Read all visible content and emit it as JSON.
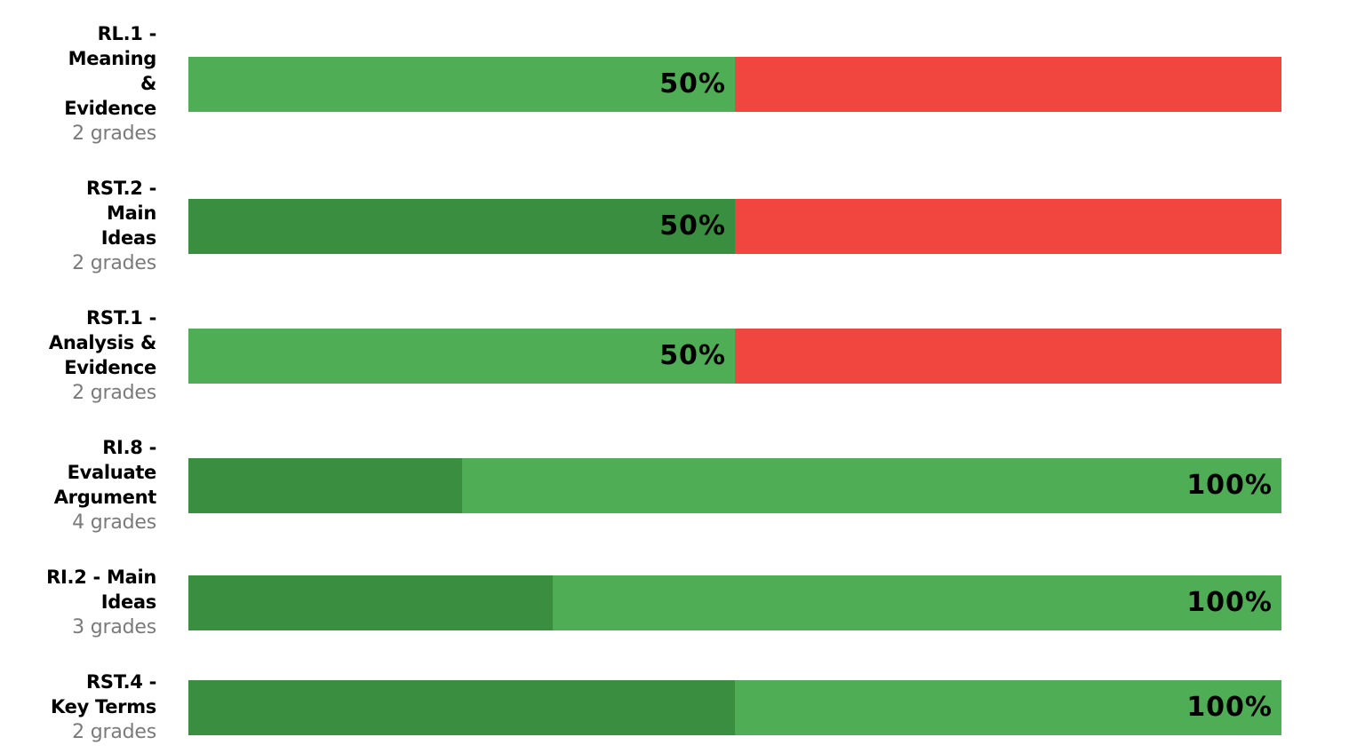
{
  "colors": {
    "mastery_dark": "#3a8e3f",
    "mastery_light": "#4fad55",
    "not_mastered": "#f1453f"
  },
  "chart_data": {
    "type": "bar",
    "orientation": "horizontal",
    "stacked": true,
    "grid": false,
    "xlim": [
      0,
      100
    ],
    "rows": [
      {
        "name": "RL.1 - Meaning & Evidence",
        "grades_label": "2 grades",
        "value_label": "50%",
        "segments": [
          {
            "color": "#4fad55",
            "value": 50
          },
          {
            "color": "#f1453f",
            "value": 50
          }
        ]
      },
      {
        "name": "RST.2 - Main Ideas",
        "grades_label": "2 grades",
        "value_label": "50%",
        "segments": [
          {
            "color": "#3a8e3f",
            "value": 50
          },
          {
            "color": "#f1453f",
            "value": 50
          }
        ]
      },
      {
        "name": "RST.1 - Analysis & Evidence",
        "grades_label": "2 grades",
        "value_label": "50%",
        "segments": [
          {
            "color": "#4fad55",
            "value": 50
          },
          {
            "color": "#f1453f",
            "value": 50
          }
        ]
      },
      {
        "name": "RI.8 - Evaluate Argument",
        "grades_label": "4 grades",
        "value_label": "100%",
        "segments": [
          {
            "color": "#3a8e3f",
            "value": 25
          },
          {
            "color": "#4fad55",
            "value": 75
          }
        ]
      },
      {
        "name": "RI.2 - Main Ideas",
        "grades_label": "3 grades",
        "value_label": "100%",
        "segments": [
          {
            "color": "#3a8e3f",
            "value": 33.3
          },
          {
            "color": "#4fad55",
            "value": 66.7
          }
        ]
      },
      {
        "name": "RST.4 - Key Terms",
        "grades_label": "2 grades",
        "value_label": "100%",
        "segments": [
          {
            "color": "#3a8e3f",
            "value": 50
          },
          {
            "color": "#4fad55",
            "value": 50
          }
        ]
      }
    ]
  }
}
